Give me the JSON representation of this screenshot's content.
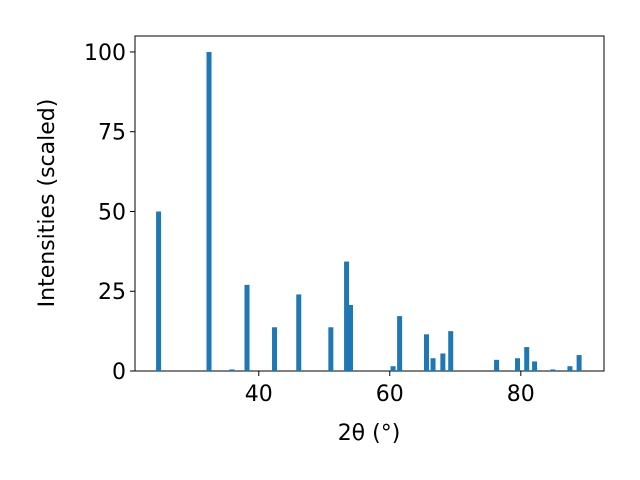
{
  "chart_data": {
    "type": "bar",
    "x_label": "2θ (°)",
    "y_label": "Intensities (scaled)",
    "x": [
      24.7,
      32.4,
      35.9,
      38.2,
      42.4,
      46.1,
      51.0,
      53.4,
      54.0,
      60.5,
      61.5,
      65.6,
      66.6,
      68.1,
      69.3,
      76.3,
      79.5,
      80.9,
      82.1,
      84.9,
      87.5,
      88.9
    ],
    "values": [
      50,
      100,
      0.5,
      27,
      13.7,
      24,
      13.7,
      34.3,
      20.7,
      1.5,
      17.2,
      11.5,
      4,
      5.5,
      12.5,
      3.5,
      4,
      7.5,
      3,
      0.5,
      1.5,
      5
    ],
    "color": "#1f77b4",
    "xlim": [
      21.1,
      92.7
    ],
    "xticks": [
      40,
      60,
      80
    ],
    "ylim": [
      0,
      105
    ],
    "yticks": [
      0,
      25,
      50,
      75,
      100
    ]
  }
}
